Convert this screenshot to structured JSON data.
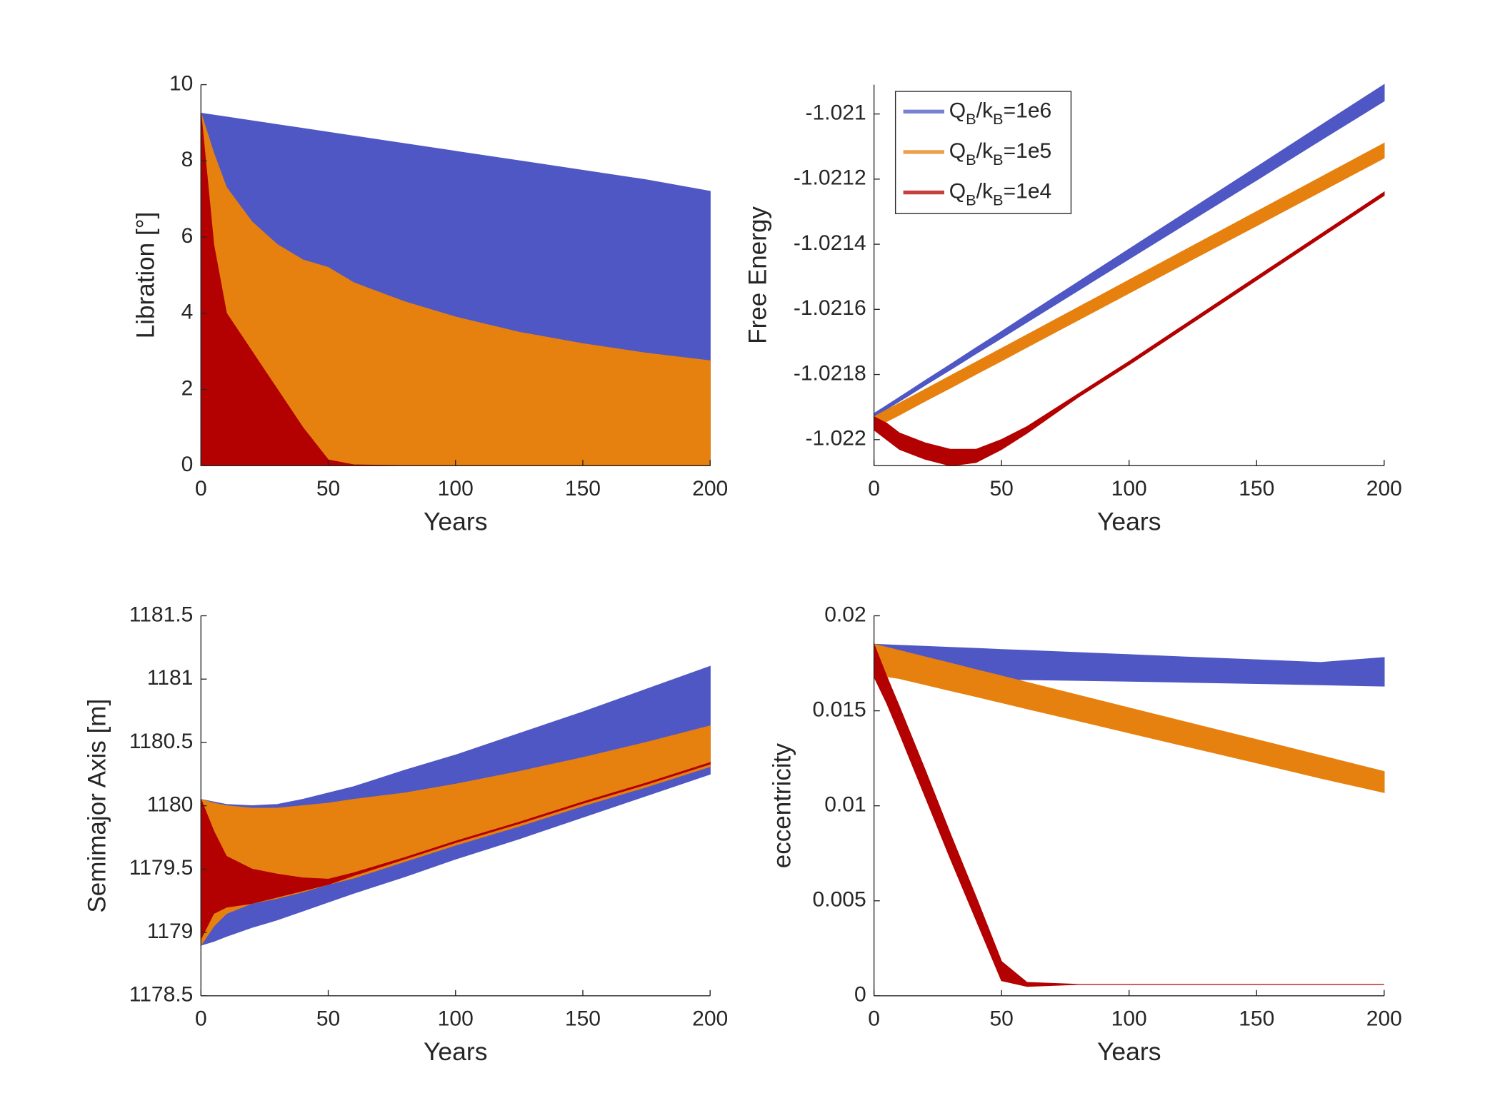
{
  "chart_data": [
    {
      "type": "band",
      "xlabel": "Years",
      "ylabel": "Libration [°]",
      "xlim": [
        0,
        200
      ],
      "xticks": [
        0,
        50,
        100,
        150,
        200
      ],
      "ylim": [
        0,
        10
      ],
      "yticks": [
        0,
        2,
        4,
        6,
        8,
        10
      ],
      "x": [
        0,
        5,
        10,
        20,
        30,
        40,
        50,
        60,
        80,
        100,
        125,
        150,
        175,
        200
      ],
      "series": [
        {
          "color": "#4f57c4",
          "upper": [
            9.25,
            9.2,
            9.15,
            9.05,
            8.95,
            8.85,
            8.75,
            8.65,
            8.45,
            8.25,
            8.0,
            7.75,
            7.5,
            7.2
          ],
          "lower": [
            0,
            0,
            0,
            0,
            0,
            0,
            0,
            0,
            0,
            0,
            0,
            0,
            0,
            0
          ]
        },
        {
          "color": "#e6810f",
          "upper": [
            9.25,
            8.2,
            7.3,
            6.4,
            5.8,
            5.4,
            5.2,
            4.8,
            4.3,
            3.9,
            3.5,
            3.2,
            2.95,
            2.75
          ],
          "lower": [
            0,
            0,
            0,
            0,
            0,
            0,
            0,
            0,
            0,
            0,
            0,
            0,
            0,
            0
          ]
        },
        {
          "color": "#b30000",
          "upper": [
            9.25,
            5.8,
            4.0,
            3.0,
            2.0,
            1.0,
            0.15,
            0.02,
            0,
            0,
            0,
            0,
            0,
            0
          ],
          "lower": [
            0,
            0,
            0,
            0,
            0,
            0,
            0,
            0,
            0,
            0,
            0,
            0,
            0,
            0
          ]
        }
      ]
    },
    {
      "type": "band",
      "xlabel": "Years",
      "ylabel": "Free Energy",
      "xlim": [
        0,
        200
      ],
      "xticks": [
        0,
        50,
        100,
        150,
        200
      ],
      "ylim": [
        -1.02208,
        -1.02091
      ],
      "yticks": [
        -1.022,
        -1.0218,
        -1.0216,
        -1.0214,
        -1.0212,
        -1.021
      ],
      "legend": "upper left",
      "x": [
        0,
        5,
        10,
        20,
        30,
        40,
        50,
        60,
        80,
        100,
        125,
        150,
        175,
        200
      ],
      "series": [
        {
          "name": "QB/kB=1e6",
          "color": "#4f57c4",
          "upper": [
            -1.02192,
            -1.021895,
            -1.02187,
            -1.021819,
            -1.021769,
            -1.021718,
            -1.021668,
            -1.021617,
            -1.021516,
            -1.021415,
            -1.021289,
            -1.021163,
            -1.021036,
            -1.02091
          ],
          "lower": [
            -1.02193,
            -1.021906,
            -1.021882,
            -1.021833,
            -1.021785,
            -1.021736,
            -1.021688,
            -1.021639,
            -1.021542,
            -1.021445,
            -1.021324,
            -1.021203,
            -1.021081,
            -1.02096
          ]
        },
        {
          "name": "QB/kB=1e5",
          "color": "#e6810f",
          "upper": [
            -1.02193,
            -1.021909,
            -1.021888,
            -1.021846,
            -1.021804,
            -1.021762,
            -1.02172,
            -1.021678,
            -1.021594,
            -1.02151,
            -1.021405,
            -1.0213,
            -1.021195,
            -1.02109
          ],
          "lower": [
            -1.021965,
            -1.021944,
            -1.021924,
            -1.021882,
            -1.021841,
            -1.021799,
            -1.021758,
            -1.021716,
            -1.021633,
            -1.02155,
            -1.021446,
            -1.021343,
            -1.021239,
            -1.021135
          ]
        },
        {
          "name": "QB/kB=1e4",
          "color": "#b30000",
          "upper": [
            -1.02193,
            -1.02195,
            -1.02198,
            -1.02201,
            -1.02203,
            -1.02203,
            -1.022,
            -1.02196,
            -1.02186,
            -1.02176,
            -1.02163,
            -1.0215,
            -1.02137,
            -1.02124
          ],
          "lower": [
            -1.02197,
            -1.022,
            -1.02203,
            -1.02206,
            -1.02208,
            -1.02207,
            -1.02203,
            -1.02198,
            -1.02187,
            -1.02177,
            -1.02164,
            -1.02151,
            -1.02138,
            -1.02125
          ]
        }
      ]
    },
    {
      "type": "band",
      "xlabel": "Years",
      "ylabel": "Semimajor Axis [m]",
      "xlim": [
        0,
        200
      ],
      "xticks": [
        0,
        50,
        100,
        150,
        200
      ],
      "ylim": [
        1178.5,
        1181.5
      ],
      "yticks": [
        1178.5,
        1179,
        1179.5,
        1180,
        1180.5,
        1181,
        1181.5
      ],
      "x": [
        0,
        5,
        10,
        20,
        30,
        40,
        50,
        60,
        80,
        100,
        125,
        150,
        175,
        200
      ],
      "series": [
        {
          "color": "#4f57c4",
          "upper": [
            1180.05,
            1180.03,
            1180.01,
            1180.0,
            1180.01,
            1180.05,
            1180.1,
            1180.15,
            1180.28,
            1180.4,
            1180.57,
            1180.74,
            1180.92,
            1181.1
          ],
          "lower": [
            1178.9,
            1178.93,
            1178.97,
            1179.04,
            1179.1,
            1179.17,
            1179.24,
            1179.31,
            1179.44,
            1179.58,
            1179.74,
            1179.91,
            1180.08,
            1180.25
          ]
        },
        {
          "color": "#e6810f",
          "upper": [
            1180.05,
            1180.02,
            1180.0,
            1179.98,
            1179.98,
            1180.0,
            1180.02,
            1180.05,
            1180.1,
            1180.17,
            1180.27,
            1180.38,
            1180.5,
            1180.63
          ],
          "lower": [
            1178.9,
            1179.05,
            1179.15,
            1179.23,
            1179.27,
            1179.32,
            1179.38,
            1179.43,
            1179.56,
            1179.69,
            1179.84,
            1180.0,
            1180.15,
            1180.31
          ]
        },
        {
          "color": "#b30000",
          "upper": [
            1180.05,
            1179.8,
            1179.6,
            1179.5,
            1179.46,
            1179.43,
            1179.42,
            1179.47,
            1179.59,
            1179.72,
            1179.87,
            1180.03,
            1180.18,
            1180.34
          ],
          "lower": [
            1178.95,
            1179.15,
            1179.2,
            1179.23,
            1179.28,
            1179.33,
            1179.38,
            1179.45,
            1179.58,
            1179.71,
            1179.86,
            1180.02,
            1180.17,
            1180.33
          ]
        }
      ]
    },
    {
      "type": "band",
      "xlabel": "Years",
      "ylabel": "eccentricity",
      "xlim": [
        0,
        200
      ],
      "xticks": [
        0,
        50,
        100,
        150,
        200
      ],
      "ylim": [
        0,
        0.02
      ],
      "yticks": [
        0,
        0.005,
        0.01,
        0.015,
        0.02
      ],
      "x": [
        0,
        5,
        10,
        20,
        30,
        40,
        50,
        60,
        80,
        100,
        125,
        150,
        175,
        200
      ],
      "series": [
        {
          "color": "#4f57c4",
          "upper": [
            0.0185,
            0.01847,
            0.01844,
            0.01839,
            0.01833,
            0.01828,
            0.01822,
            0.01817,
            0.01806,
            0.01795,
            0.01781,
            0.01768,
            0.01754,
            0.0178
          ],
          "lower": [
            0.0185,
            0.0178,
            0.0172,
            0.0167,
            0.0167,
            0.01668,
            0.01666,
            0.01664,
            0.0166,
            0.01656,
            0.0165,
            0.01644,
            0.01637,
            0.0163
          ]
        },
        {
          "color": "#e6810f",
          "upper": [
            0.0185,
            0.01833,
            0.01817,
            0.01783,
            0.0175,
            0.01716,
            0.01683,
            0.01649,
            0.01582,
            0.01515,
            0.01431,
            0.01348,
            0.01264,
            0.0118
          ],
          "lower": [
            0.0185,
            0.0168,
            0.0167,
            0.01638,
            0.01606,
            0.01575,
            0.01543,
            0.01511,
            0.01448,
            0.01384,
            0.01305,
            0.01226,
            0.01146,
            0.0107
          ]
        },
        {
          "color": "#b30000",
          "upper": [
            0.0185,
            0.0168,
            0.0152,
            0.0119,
            0.0085,
            0.0052,
            0.0018,
            0.0007,
            0.0006,
            0.0006,
            0.0006,
            0.0006,
            0.0006,
            0.0006
          ],
          "lower": [
            0.0168,
            0.0154,
            0.0138,
            0.0105,
            0.0072,
            0.004,
            0.0008,
            0.0005,
            0.0006,
            0.0006,
            0.0006,
            0.0006,
            0.0006,
            0.0006
          ]
        }
      ]
    }
  ]
}
